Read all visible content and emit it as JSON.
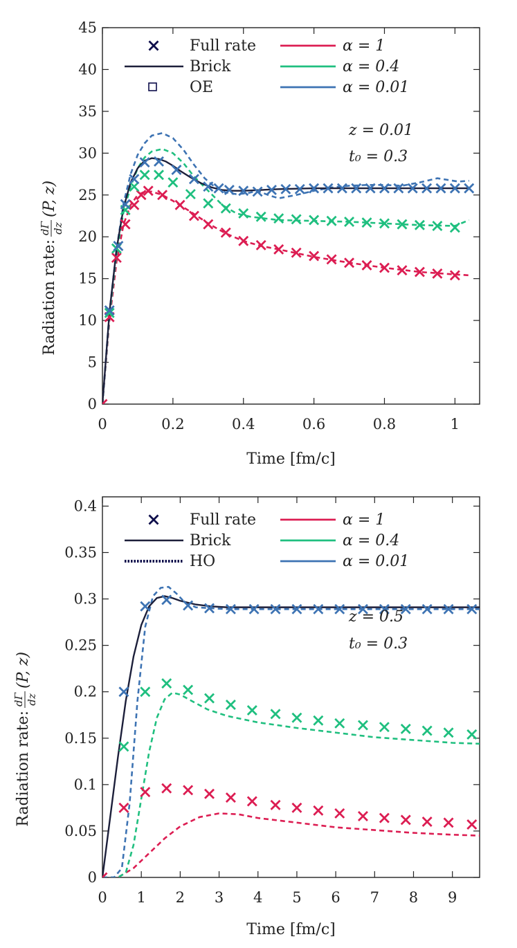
{
  "colors": {
    "alpha1": "#dc1d52",
    "alpha04": "#1fbf7f",
    "alpha001": "#3d73b3",
    "brick": "#1c1f3a",
    "fullrate_marker": "#0d0d4a"
  },
  "chart_data": [
    {
      "type": "line",
      "id": "top",
      "xlabel": "Time [fm/c]",
      "ylabel_prefix": "Radiation rate:",
      "ylabel_frac_num": "dΓ",
      "ylabel_frac_den": "dz",
      "ylabel_suffix": "(P, z)",
      "xlim": [
        0,
        1.07
      ],
      "ylim": [
        0,
        45
      ],
      "xticks": [
        0,
        0.2,
        0.4,
        0.6,
        0.8,
        1
      ],
      "xtick_labels": [
        "0",
        "0.2",
        "0.4",
        "0.6",
        "0.8",
        "1"
      ],
      "yticks": [
        0,
        5,
        10,
        15,
        20,
        25,
        30,
        35,
        40,
        45
      ],
      "ytick_labels": [
        "0",
        "5",
        "10",
        "15",
        "20",
        "25",
        "30",
        "35",
        "40",
        "45"
      ],
      "annotations": [
        "z = 0.01",
        "t₀ = 0.3"
      ],
      "legend": {
        "full_rate": "Full rate",
        "brick": "Brick",
        "approx": "OE",
        "approx_style": "square",
        "alpha1": "α = 1",
        "alpha04": "α = 0.4",
        "alpha001": "α = 0.01"
      },
      "brick": {
        "x": [
          0,
          0.02,
          0.04,
          0.06,
          0.08,
          0.1,
          0.12,
          0.14,
          0.16,
          0.18,
          0.2,
          0.22,
          0.25,
          0.28,
          0.31,
          0.34,
          0.37,
          0.4,
          0.45,
          0.5,
          0.6,
          0.7,
          0.8,
          0.9,
          1.0,
          1.04
        ],
        "y": [
          0,
          11,
          18.5,
          23.5,
          26.5,
          28.2,
          29.1,
          29.4,
          29.3,
          29.0,
          28.5,
          27.9,
          27.1,
          26.4,
          25.9,
          25.6,
          25.5,
          25.5,
          25.6,
          25.7,
          25.8,
          25.8,
          25.8,
          25.8,
          25.8,
          25.8
        ]
      },
      "series": [
        {
          "name": "α = 1",
          "color_key": "alpha1",
          "markers_x": [
            0,
            0.02,
            0.04,
            0.065,
            0.09,
            0.11,
            0.13,
            0.17,
            0.22,
            0.26,
            0.3,
            0.35,
            0.4,
            0.45,
            0.5,
            0.55,
            0.6,
            0.65,
            0.7,
            0.75,
            0.8,
            0.85,
            0.9,
            0.95,
            1.0
          ],
          "markers_y": [
            0,
            10.4,
            17.5,
            21.5,
            23.8,
            25.0,
            25.5,
            25.0,
            23.8,
            22.5,
            21.5,
            20.5,
            19.5,
            19.0,
            18.5,
            18.1,
            17.7,
            17.3,
            16.9,
            16.6,
            16.3,
            16.0,
            15.8,
            15.6,
            15.4
          ],
          "line_x": [
            0,
            0.02,
            0.04,
            0.06,
            0.08,
            0.1,
            0.12,
            0.14,
            0.17,
            0.2,
            0.25,
            0.3,
            0.35,
            0.4,
            0.45,
            0.5,
            0.6,
            0.7,
            0.8,
            0.9,
            1.0,
            1.04
          ],
          "line_y": [
            0,
            10,
            17,
            21.5,
            23.8,
            25,
            25.4,
            25.4,
            25,
            24.3,
            23,
            21.6,
            20.4,
            19.5,
            18.9,
            18.5,
            17.6,
            16.9,
            16.3,
            15.8,
            15.5,
            15.4
          ]
        },
        {
          "name": "α = 0.4",
          "color_key": "alpha04",
          "markers_x": [
            0.02,
            0.04,
            0.065,
            0.09,
            0.12,
            0.16,
            0.2,
            0.25,
            0.3,
            0.35,
            0.4,
            0.45,
            0.5,
            0.55,
            0.6,
            0.65,
            0.7,
            0.75,
            0.8,
            0.85,
            0.9,
            0.95,
            1.0
          ],
          "markers_y": [
            10.9,
            18.6,
            23.2,
            26.0,
            27.4,
            27.4,
            26.5,
            25.1,
            24.0,
            23.4,
            22.8,
            22.4,
            22.2,
            22.1,
            22.0,
            21.9,
            21.8,
            21.7,
            21.6,
            21.5,
            21.4,
            21.3,
            21.1
          ],
          "line_x": [
            0,
            0.02,
            0.04,
            0.06,
            0.08,
            0.1,
            0.12,
            0.14,
            0.17,
            0.2,
            0.23,
            0.26,
            0.3,
            0.34,
            0.38,
            0.42,
            0.46,
            0.5,
            0.6,
            0.7,
            0.8,
            0.9,
            1.0,
            1.04
          ],
          "line_y": [
            0,
            10.5,
            18,
            23,
            26,
            28.2,
            29.5,
            30.2,
            30.5,
            30.0,
            28.8,
            27.2,
            25.5,
            23.8,
            22.8,
            22.4,
            22.2,
            22.0,
            21.9,
            21.8,
            21.6,
            21.4,
            21.3,
            22.0
          ]
        },
        {
          "name": "α = 0.01",
          "color_key": "alpha001",
          "markers_x": [
            0.02,
            0.045,
            0.065,
            0.09,
            0.12,
            0.16,
            0.21,
            0.26,
            0.3,
            0.33,
            0.36,
            0.4,
            0.44,
            0.48,
            0.52,
            0.56,
            0.6,
            0.64,
            0.68,
            0.72,
            0.76,
            0.8,
            0.84,
            0.88,
            0.92,
            0.96,
            1.0,
            1.04
          ],
          "markers_y": [
            11.2,
            18.9,
            23.9,
            26.9,
            28.9,
            29.0,
            28.0,
            26.9,
            26.0,
            25.8,
            25.6,
            25.5,
            25.4,
            25.6,
            25.7,
            25.7,
            25.8,
            25.8,
            25.8,
            25.8,
            25.8,
            25.8,
            25.8,
            25.8,
            25.8,
            25.8,
            25.8,
            25.8
          ],
          "line_x": [
            0,
            0.02,
            0.04,
            0.06,
            0.08,
            0.1,
            0.12,
            0.14,
            0.17,
            0.2,
            0.23,
            0.26,
            0.29,
            0.32,
            0.35,
            0.38,
            0.41,
            0.44,
            0.47,
            0.5,
            0.55,
            0.6,
            0.65,
            0.7,
            0.75,
            0.8,
            0.85,
            0.9,
            0.95,
            0.98,
            1.01,
            1.04
          ],
          "line_y": [
            0,
            11,
            18.5,
            24,
            27.5,
            29.8,
            31.2,
            32.1,
            32.4,
            31.8,
            30.4,
            28.6,
            27.0,
            25.9,
            25.3,
            25.1,
            25.2,
            25.5,
            25.0,
            24.6,
            25.0,
            25.5,
            25.9,
            26.1,
            26.2,
            26.2,
            26.1,
            26.5,
            27.0,
            26.8,
            26.6,
            26.7
          ]
        }
      ]
    },
    {
      "type": "line",
      "id": "bottom",
      "xlabel": "Time [fm/c]",
      "ylabel_prefix": "Radiation rate:",
      "ylabel_frac_num": "dΓ",
      "ylabel_frac_den": "dz",
      "ylabel_suffix": "(P, z)",
      "xlim": [
        0,
        9.7
      ],
      "ylim": [
        0,
        0.41
      ],
      "xticks": [
        0,
        1,
        2,
        3,
        4,
        5,
        6,
        7,
        8,
        9
      ],
      "xtick_labels": [
        "0",
        "1",
        "2",
        "3",
        "4",
        "5",
        "6",
        "7",
        "8",
        "9"
      ],
      "yticks": [
        0,
        0.05,
        0.1,
        0.15,
        0.2,
        0.25,
        0.3,
        0.35,
        0.4
      ],
      "ytick_labels": [
        "0",
        "0.05",
        "0.1",
        "0.15",
        "0.2",
        "0.25",
        "0.3",
        "0.35",
        "0.4"
      ],
      "annotations": [
        "z = 0.5",
        "t₀ = 0.3"
      ],
      "legend": {
        "full_rate": "Full rate",
        "brick": "Brick",
        "approx": "HO",
        "approx_style": "dotted",
        "alpha1": "α = 1",
        "alpha04": "α = 0.4",
        "alpha001": "α = 0.01"
      },
      "brick": {
        "x": [
          0,
          0.2,
          0.4,
          0.6,
          0.8,
          1.0,
          1.2,
          1.4,
          1.6,
          1.8,
          2.0,
          2.4,
          2.8,
          3.2,
          4,
          5,
          6,
          7,
          8,
          9,
          9.7
        ],
        "y": [
          0,
          0.065,
          0.13,
          0.19,
          0.238,
          0.272,
          0.292,
          0.301,
          0.303,
          0.301,
          0.298,
          0.294,
          0.292,
          0.291,
          0.291,
          0.291,
          0.291,
          0.291,
          0.291,
          0.291,
          0.291
        ]
      },
      "series": [
        {
          "name": "α = 1",
          "color_key": "alpha1",
          "markers_x": [
            0,
            0.55,
            1.1,
            1.65,
            2.2,
            2.75,
            3.3,
            3.85,
            4.45,
            5.0,
            5.55,
            6.1,
            6.7,
            7.25,
            7.8,
            8.35,
            8.9,
            9.5
          ],
          "markers_y": [
            0,
            0.075,
            0.092,
            0.096,
            0.094,
            0.09,
            0.086,
            0.082,
            0.078,
            0.075,
            0.072,
            0.069,
            0.066,
            0.064,
            0.062,
            0.06,
            0.059,
            0.057
          ],
          "line_x": [
            0,
            0.4,
            0.8,
            1.2,
            1.6,
            2.0,
            2.5,
            3.0,
            3.5,
            4.0,
            5.0,
            6.0,
            7.0,
            8.0,
            9.0,
            9.7
          ],
          "line_y": [
            0,
            0.0,
            0.01,
            0.026,
            0.042,
            0.055,
            0.065,
            0.069,
            0.068,
            0.064,
            0.059,
            0.054,
            0.051,
            0.048,
            0.046,
            0.045
          ]
        },
        {
          "name": "α = 0.4",
          "color_key": "alpha04",
          "markers_x": [
            0.55,
            1.1,
            1.65,
            2.2,
            2.75,
            3.3,
            3.85,
            4.45,
            5.0,
            5.55,
            6.1,
            6.7,
            7.25,
            7.8,
            8.35,
            8.9,
            9.5
          ],
          "markers_y": [
            0.141,
            0.2,
            0.209,
            0.202,
            0.193,
            0.186,
            0.18,
            0.176,
            0.172,
            0.169,
            0.166,
            0.164,
            0.162,
            0.16,
            0.158,
            0.156,
            0.154
          ],
          "line_x": [
            0,
            0.4,
            0.6,
            0.8,
            1.0,
            1.2,
            1.4,
            1.6,
            1.8,
            2.0,
            2.3,
            2.7,
            3.2,
            4.0,
            5.0,
            6.0,
            7.0,
            8.0,
            9.0,
            9.7
          ],
          "line_y": [
            0,
            0.0,
            0.005,
            0.035,
            0.085,
            0.135,
            0.172,
            0.192,
            0.199,
            0.197,
            0.19,
            0.181,
            0.174,
            0.167,
            0.161,
            0.156,
            0.151,
            0.148,
            0.145,
            0.144
          ]
        },
        {
          "name": "α = 0.01",
          "color_key": "alpha001",
          "markers_x": [
            0.55,
            1.1,
            1.65,
            2.2,
            2.75,
            3.3,
            3.9,
            4.45,
            5.0,
            5.55,
            6.1,
            6.7,
            7.25,
            7.8,
            8.35,
            8.9,
            9.5
          ],
          "markers_y": [
            0.2,
            0.292,
            0.299,
            0.293,
            0.29,
            0.289,
            0.289,
            0.289,
            0.289,
            0.289,
            0.289,
            0.289,
            0.289,
            0.289,
            0.289,
            0.289,
            0.289
          ],
          "line_x": [
            0,
            0.3,
            0.5,
            0.7,
            0.9,
            1.1,
            1.3,
            1.5,
            1.7,
            1.9,
            2.1,
            2.4,
            2.8,
            3.2,
            4,
            5,
            6,
            7,
            8,
            9,
            9.7
          ],
          "line_y": [
            0,
            0.0,
            0.01,
            0.08,
            0.19,
            0.27,
            0.303,
            0.312,
            0.313,
            0.306,
            0.297,
            0.291,
            0.29,
            0.289,
            0.289,
            0.289,
            0.289,
            0.289,
            0.289,
            0.289,
            0.289
          ]
        }
      ]
    }
  ]
}
